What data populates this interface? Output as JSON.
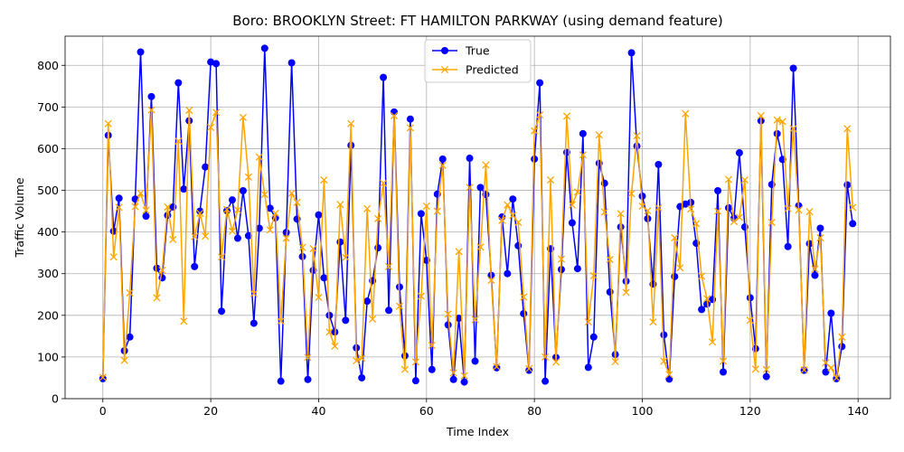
{
  "chart_data": {
    "type": "line",
    "title": "Boro: BROOKLYN Street: FT HAMILTON PARKWAY (using demand feature)",
    "xlabel": "Time Index",
    "ylabel": "Traffic Volume",
    "xlim": [
      -7,
      146
    ],
    "ylim": [
      0,
      870
    ],
    "xticks": [
      0,
      20,
      40,
      60,
      80,
      100,
      120,
      140
    ],
    "yticks": [
      0,
      100,
      200,
      300,
      400,
      500,
      600,
      700,
      800
    ],
    "grid": true,
    "legend_position": "top-center",
    "series": [
      {
        "name": "True",
        "color": "#0000ff",
        "marker": "circle",
        "values": [
          48,
          632,
          402,
          481,
          115,
          148,
          479,
          832,
          438,
          725,
          313,
          290,
          440,
          460,
          758,
          503,
          667,
          317,
          450,
          556,
          808,
          804,
          210,
          451,
          477,
          385,
          499,
          391,
          181,
          409,
          841,
          457,
          434,
          42,
          399,
          806,
          431,
          341,
          46,
          308,
          441,
          290,
          200,
          160,
          376,
          188,
          608,
          122,
          50,
          234,
          283,
          362,
          771,
          212,
          688,
          268,
          103,
          671,
          43,
          444,
          332,
          70,
          491,
          575,
          177,
          46,
          193,
          40,
          577,
          90,
          507,
          490,
          296,
          74,
          436,
          300,
          479,
          367,
          204,
          68,
          575,
          758,
          42,
          360,
          99,
          310,
          591,
          422,
          312,
          636,
          75,
          148,
          565,
          517,
          256,
          106,
          412,
          282,
          830,
          606,
          486,
          432,
          275,
          562,
          153,
          47,
          293,
          461,
          467,
          471,
          373,
          214,
          227,
          238,
          499,
          64,
          458,
          433,
          590,
          412,
          242,
          120,
          667,
          53,
          514,
          636,
          574,
          365,
          793,
          463,
          68,
          372,
          296,
          409,
          64,
          205,
          48,
          125,
          513,
          420
        ]
      },
      {
        "name": "Predicted",
        "color": "#ffa500",
        "marker": "x",
        "values": [
          51,
          660,
          340,
          459,
          92,
          254,
          461,
          493,
          452,
          693,
          242,
          308,
          460,
          382,
          618,
          186,
          692,
          389,
          445,
          390,
          651,
          687,
          340,
          454,
          402,
          453,
          675,
          532,
          252,
          580,
          490,
          405,
          445,
          186,
          385,
          493,
          471,
          363,
          99,
          360,
          243,
          525,
          160,
          126,
          466,
          339,
          660,
          91,
          97,
          456,
          191,
          432,
          517,
          317,
          679,
          222,
          70,
          650,
          88,
          246,
          462,
          128,
          450,
          560,
          203,
          62,
          353,
          55,
          507,
          190,
          364,
          561,
          284,
          77,
          428,
          465,
          440,
          423,
          244,
          72,
          643,
          681,
          100,
          525,
          88,
          335,
          678,
          465,
          496,
          585,
          184,
          295,
          633,
          448,
          334,
          89,
          444,
          255,
          492,
          631,
          462,
          451,
          184,
          458,
          90,
          58,
          386,
          314,
          684,
          455,
          420,
          294,
          240,
          136,
          450,
          90,
          526,
          425,
          435,
          525,
          188,
          71,
          679,
          70,
          423,
          669,
          665,
          456,
          648,
          453,
          69,
          449,
          311,
          386,
          86,
          74,
          50,
          148,
          648,
          459
        ]
      }
    ]
  }
}
